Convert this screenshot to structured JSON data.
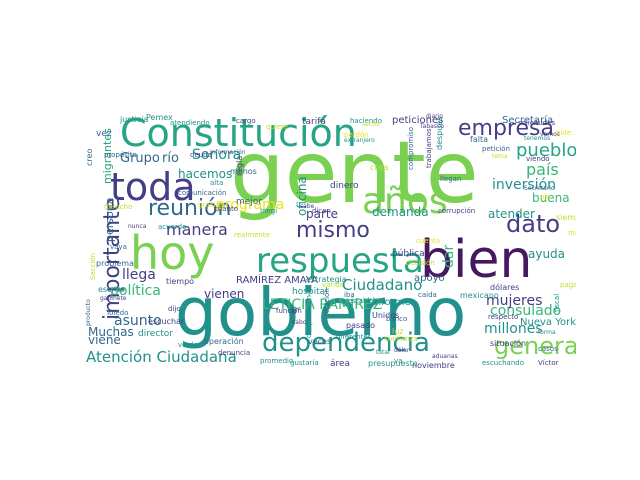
{
  "palette": {
    "dark_purple": "#46185f",
    "indigo": "#433e85",
    "blue": "#31688e",
    "teal": "#21918c",
    "sea_green": "#25a584",
    "green": "#35b779",
    "light_green": "#7ad151",
    "yellow_green": "#bddf26",
    "yellow": "#e5e419"
  },
  "words": [
    "gente",
    "gobierno",
    "hoy",
    "bien",
    "Constitución",
    "toda",
    "años",
    "respuesta",
    "empresa",
    "dependencia",
    "mismo",
    "dato",
    "reunión",
    "general",
    "importante",
    "pueblo",
    "país",
    "Sonora",
    "inversión",
    "Grupo",
    "río",
    "manera",
    "Ciudadano",
    "LETICIA RAMÍREZ",
    "RAMÍREZ AMAYA",
    "consulado",
    "política",
    "Atención Ciudadana",
    "millones",
    "mujeres",
    "asunto",
    "llega",
    "parte",
    "programa",
    "hacemos",
    "vienen",
    "oficina",
    "ayuda",
    "buena",
    "atender",
    "demanda",
    "persona",
    "migrantes",
    "viene",
    "Muchas",
    "Nueva York",
    "Secretaría",
    "peticiones",
    "dar",
    "informe",
    "apoyo",
    "Pemex",
    "tarifa",
    "haciendo",
    "cargo",
    "atendiendo",
    "justicia",
    "propósito",
    "deuda",
    "información",
    "regla",
    "mejor",
    "alta",
    "dinero",
    "cosa",
    "después",
    "compromiso",
    "trabajamos",
    "llegan",
    "solicitudes",
    "petición",
    "viendo",
    "tiempo",
    "estrategia",
    "hospital",
    "iba",
    "Unidos",
    "caída",
    "mexicano",
    "respecto",
    "situación",
    "escuchando",
    "noviembre",
    "presupuesto",
    "confianza",
    "aduanas",
    "director",
    "operación",
    "denuncia",
    "promedio",
    "área",
    "veces",
    "gustaría",
    "pasado",
    "luz",
    "banco",
    "establece",
    "cooperación",
    "comunicación",
    "cuánto",
    "Toledo",
    "problema",
    "gabinete",
    "escrito",
    "dijo",
    "vaya",
    "acuerdo",
    "nunca",
    "sabe",
    "dicen",
    "Inegi",
    "corrupción",
    "Víctor",
    "casos",
    "fiscal",
    "dólares",
    "siempre",
    "falta",
    "Tabasco",
    "creo",
    "vez",
    "producto",
    "escuchar",
    "función",
    "relación",
    "cabo",
    "diferentes",
    "va",
    "verdad",
    "dólar",
    "menos",
    "ir",
    "total",
    "pública",
    "cuenta",
    "tema",
    "sector",
    "tenemos",
    "derecho",
    "diario",
    "forma",
    "extranjero",
    "Sección",
    "realmente",
    "Secretario",
    "vemos",
    "gracias",
    "varios",
    "perdón",
    "decisión",
    "quiere",
    "pide",
    "paga",
    "mayor",
    "ojo"
  ]
}
